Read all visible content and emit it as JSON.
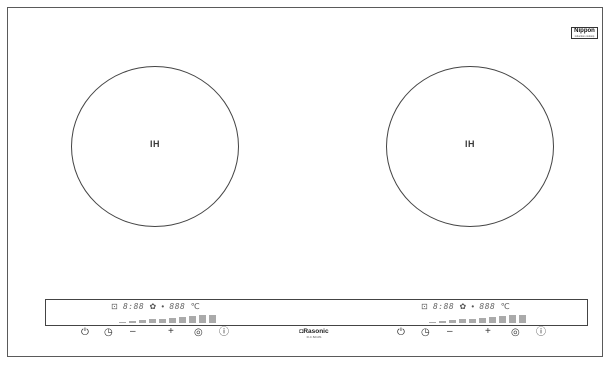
{
  "badge": {
    "brand": "Nippon",
    "sub": "induction cooktop"
  },
  "zones": [
    {
      "label": "IH"
    },
    {
      "label": "IH"
    }
  ],
  "displays": [
    {
      "lock_icon": "⊡",
      "digits_left": "8:88",
      "fan_icon": "✿",
      "dot": "•",
      "digits_right": "888",
      "unit": "℃",
      "power_levels": [
        0.15,
        0.25,
        0.35,
        0.45,
        0.55,
        0.65,
        0.75,
        0.85,
        0.95,
        1.0
      ]
    },
    {
      "lock_icon": "⊡",
      "digits_left": "8:88",
      "fan_icon": "✿",
      "dot": "•",
      "digits_right": "888",
      "unit": "℃",
      "power_levels": [
        0.15,
        0.25,
        0.35,
        0.45,
        0.55,
        0.65,
        0.75,
        0.85,
        0.95,
        1.0
      ]
    }
  ],
  "controls_left": {
    "power": "⏻",
    "timer": "◷",
    "minus": "–",
    "plus": "+",
    "mode": "◎",
    "info": "ⓘ"
  },
  "controls_right": {
    "power": "⏻",
    "timer": "◷",
    "minus": "–",
    "plus": "+",
    "mode": "◎",
    "info": "ⓘ"
  },
  "brand": {
    "name": "◘Rasonic",
    "model": "R-C 8210S"
  }
}
